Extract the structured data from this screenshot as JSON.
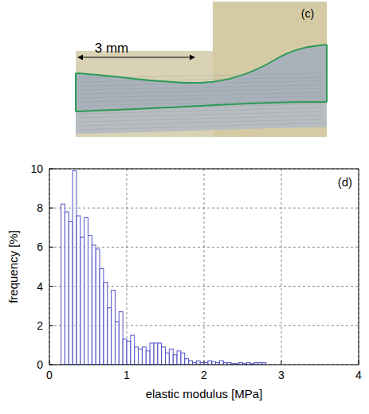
{
  "image_panel": {
    "label": "(c)",
    "scale_bar": "3 mm"
  },
  "chart_data": {
    "type": "histogram",
    "title": "(d)",
    "xlabel": "elastic modulus [MPa]",
    "ylabel": "frequency [%]",
    "bins": [
      0.15,
      0.2,
      0.25,
      0.3,
      0.35,
      0.4,
      0.45,
      0.5,
      0.55,
      0.6,
      0.65,
      0.7,
      0.75,
      0.8,
      0.85,
      0.9,
      0.95,
      1.0,
      1.05,
      1.1,
      1.15,
      1.2,
      1.25,
      1.3,
      1.35,
      1.4,
      1.45,
      1.5,
      1.55,
      1.6,
      1.65,
      1.7,
      1.75,
      1.8,
      1.85,
      1.9,
      1.95,
      2.0,
      2.05,
      2.1,
      2.15,
      2.2,
      2.25,
      2.3,
      2.35,
      2.4,
      2.45,
      2.5,
      2.55,
      2.6,
      2.65,
      2.7,
      2.75,
      2.8
    ],
    "values": [
      8.2,
      7.8,
      7.3,
      9.9,
      7.6,
      6.5,
      7.5,
      6.6,
      6.1,
      5.9,
      4.9,
      4.2,
      2.9,
      3.8,
      2.2,
      2.7,
      1.3,
      1.2,
      1.5,
      0.9,
      0.8,
      0.9,
      0.7,
      1.1,
      1.1,
      1.1,
      0.9,
      0.6,
      0.8,
      0.5,
      0.7,
      0.6,
      0.3,
      0.2,
      0.1,
      0.2,
      0.1,
      0.1,
      0.2,
      0.15,
      0.1,
      0.2,
      0.1,
      0.1,
      0.05,
      0.05,
      0.1,
      0.05,
      0.1,
      0.05,
      0.1,
      0.1,
      0.1
    ],
    "color": "#5050c8",
    "xlim": [
      0,
      4
    ],
    "xticks": [
      0,
      1,
      2,
      3,
      4
    ],
    "ylim": [
      0,
      10
    ],
    "yticks": [
      0,
      2,
      4,
      6,
      8,
      10
    ],
    "grid": true
  }
}
